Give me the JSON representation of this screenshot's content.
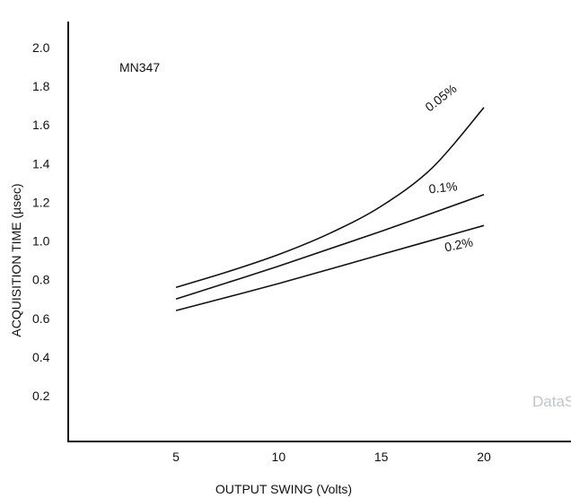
{
  "chart_data": {
    "type": "line",
    "xlabel": "OUTPUT SWING (Volts)",
    "ylabel": "ACQUISITION TIME (µsec)",
    "xlim": [
      0,
      24
    ],
    "ylim": [
      0,
      2.1
    ],
    "x_ticks": [
      5,
      10,
      15,
      20
    ],
    "y_ticks": [
      0.2,
      0.4,
      0.6,
      0.8,
      1.0,
      1.2,
      1.4,
      1.6,
      1.8,
      2.0
    ],
    "x_tick_labels": [
      "5",
      "10",
      "15",
      "20"
    ],
    "y_tick_labels": [
      "0.2",
      "0.4",
      "0.6",
      "0.8",
      "1.0",
      "1.2",
      "1.4",
      "1.6",
      "1.8",
      "2.0"
    ],
    "grid": false,
    "annotations": {
      "model": "MN347",
      "watermark": "DataS"
    },
    "series": [
      {
        "name": "0.05%",
        "x": [
          5,
          7.5,
          10,
          12.5,
          15,
          17.5,
          20
        ],
        "y": [
          0.76,
          0.84,
          0.93,
          1.04,
          1.18,
          1.38,
          1.69
        ]
      },
      {
        "name": "0.1%",
        "x": [
          5,
          10,
          15,
          20
        ],
        "y": [
          0.7,
          0.87,
          1.05,
          1.24
        ]
      },
      {
        "name": "0.2%",
        "x": [
          5,
          10,
          15,
          20
        ],
        "y": [
          0.64,
          0.78,
          0.93,
          1.08
        ]
      }
    ]
  }
}
